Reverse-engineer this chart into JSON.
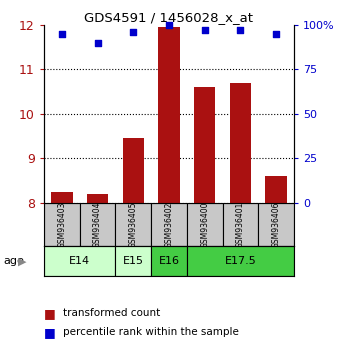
{
  "title": "GDS4591 / 1456028_x_at",
  "samples": [
    "GSM936403",
    "GSM936404",
    "GSM936405",
    "GSM936402",
    "GSM936400",
    "GSM936401",
    "GSM936406"
  ],
  "transformed_counts": [
    8.25,
    8.2,
    9.45,
    11.95,
    10.6,
    10.7,
    8.6
  ],
  "percentile_ranks": [
    95,
    90,
    96,
    100,
    97,
    97,
    95
  ],
  "age_groups": [
    {
      "label": "E14",
      "samples": [
        0,
        1
      ],
      "color": "#ccffcc"
    },
    {
      "label": "E15",
      "samples": [
        2
      ],
      "color": "#ccffcc"
    },
    {
      "label": "E16",
      "samples": [
        3
      ],
      "color": "#44cc44"
    },
    {
      "label": "E17.5",
      "samples": [
        4,
        5,
        6
      ],
      "color": "#44cc44"
    }
  ],
  "ylim_left": [
    8,
    12
  ],
  "ylim_right": [
    0,
    100
  ],
  "yticks_left": [
    8,
    9,
    10,
    11,
    12
  ],
  "yticks_right": [
    0,
    25,
    50,
    75,
    100
  ],
  "bar_color": "#aa1111",
  "dot_color": "#0000cc",
  "background_color": "#ffffff",
  "label_transformed": "transformed count",
  "label_percentile": "percentile rank within the sample",
  "age_label": "age"
}
